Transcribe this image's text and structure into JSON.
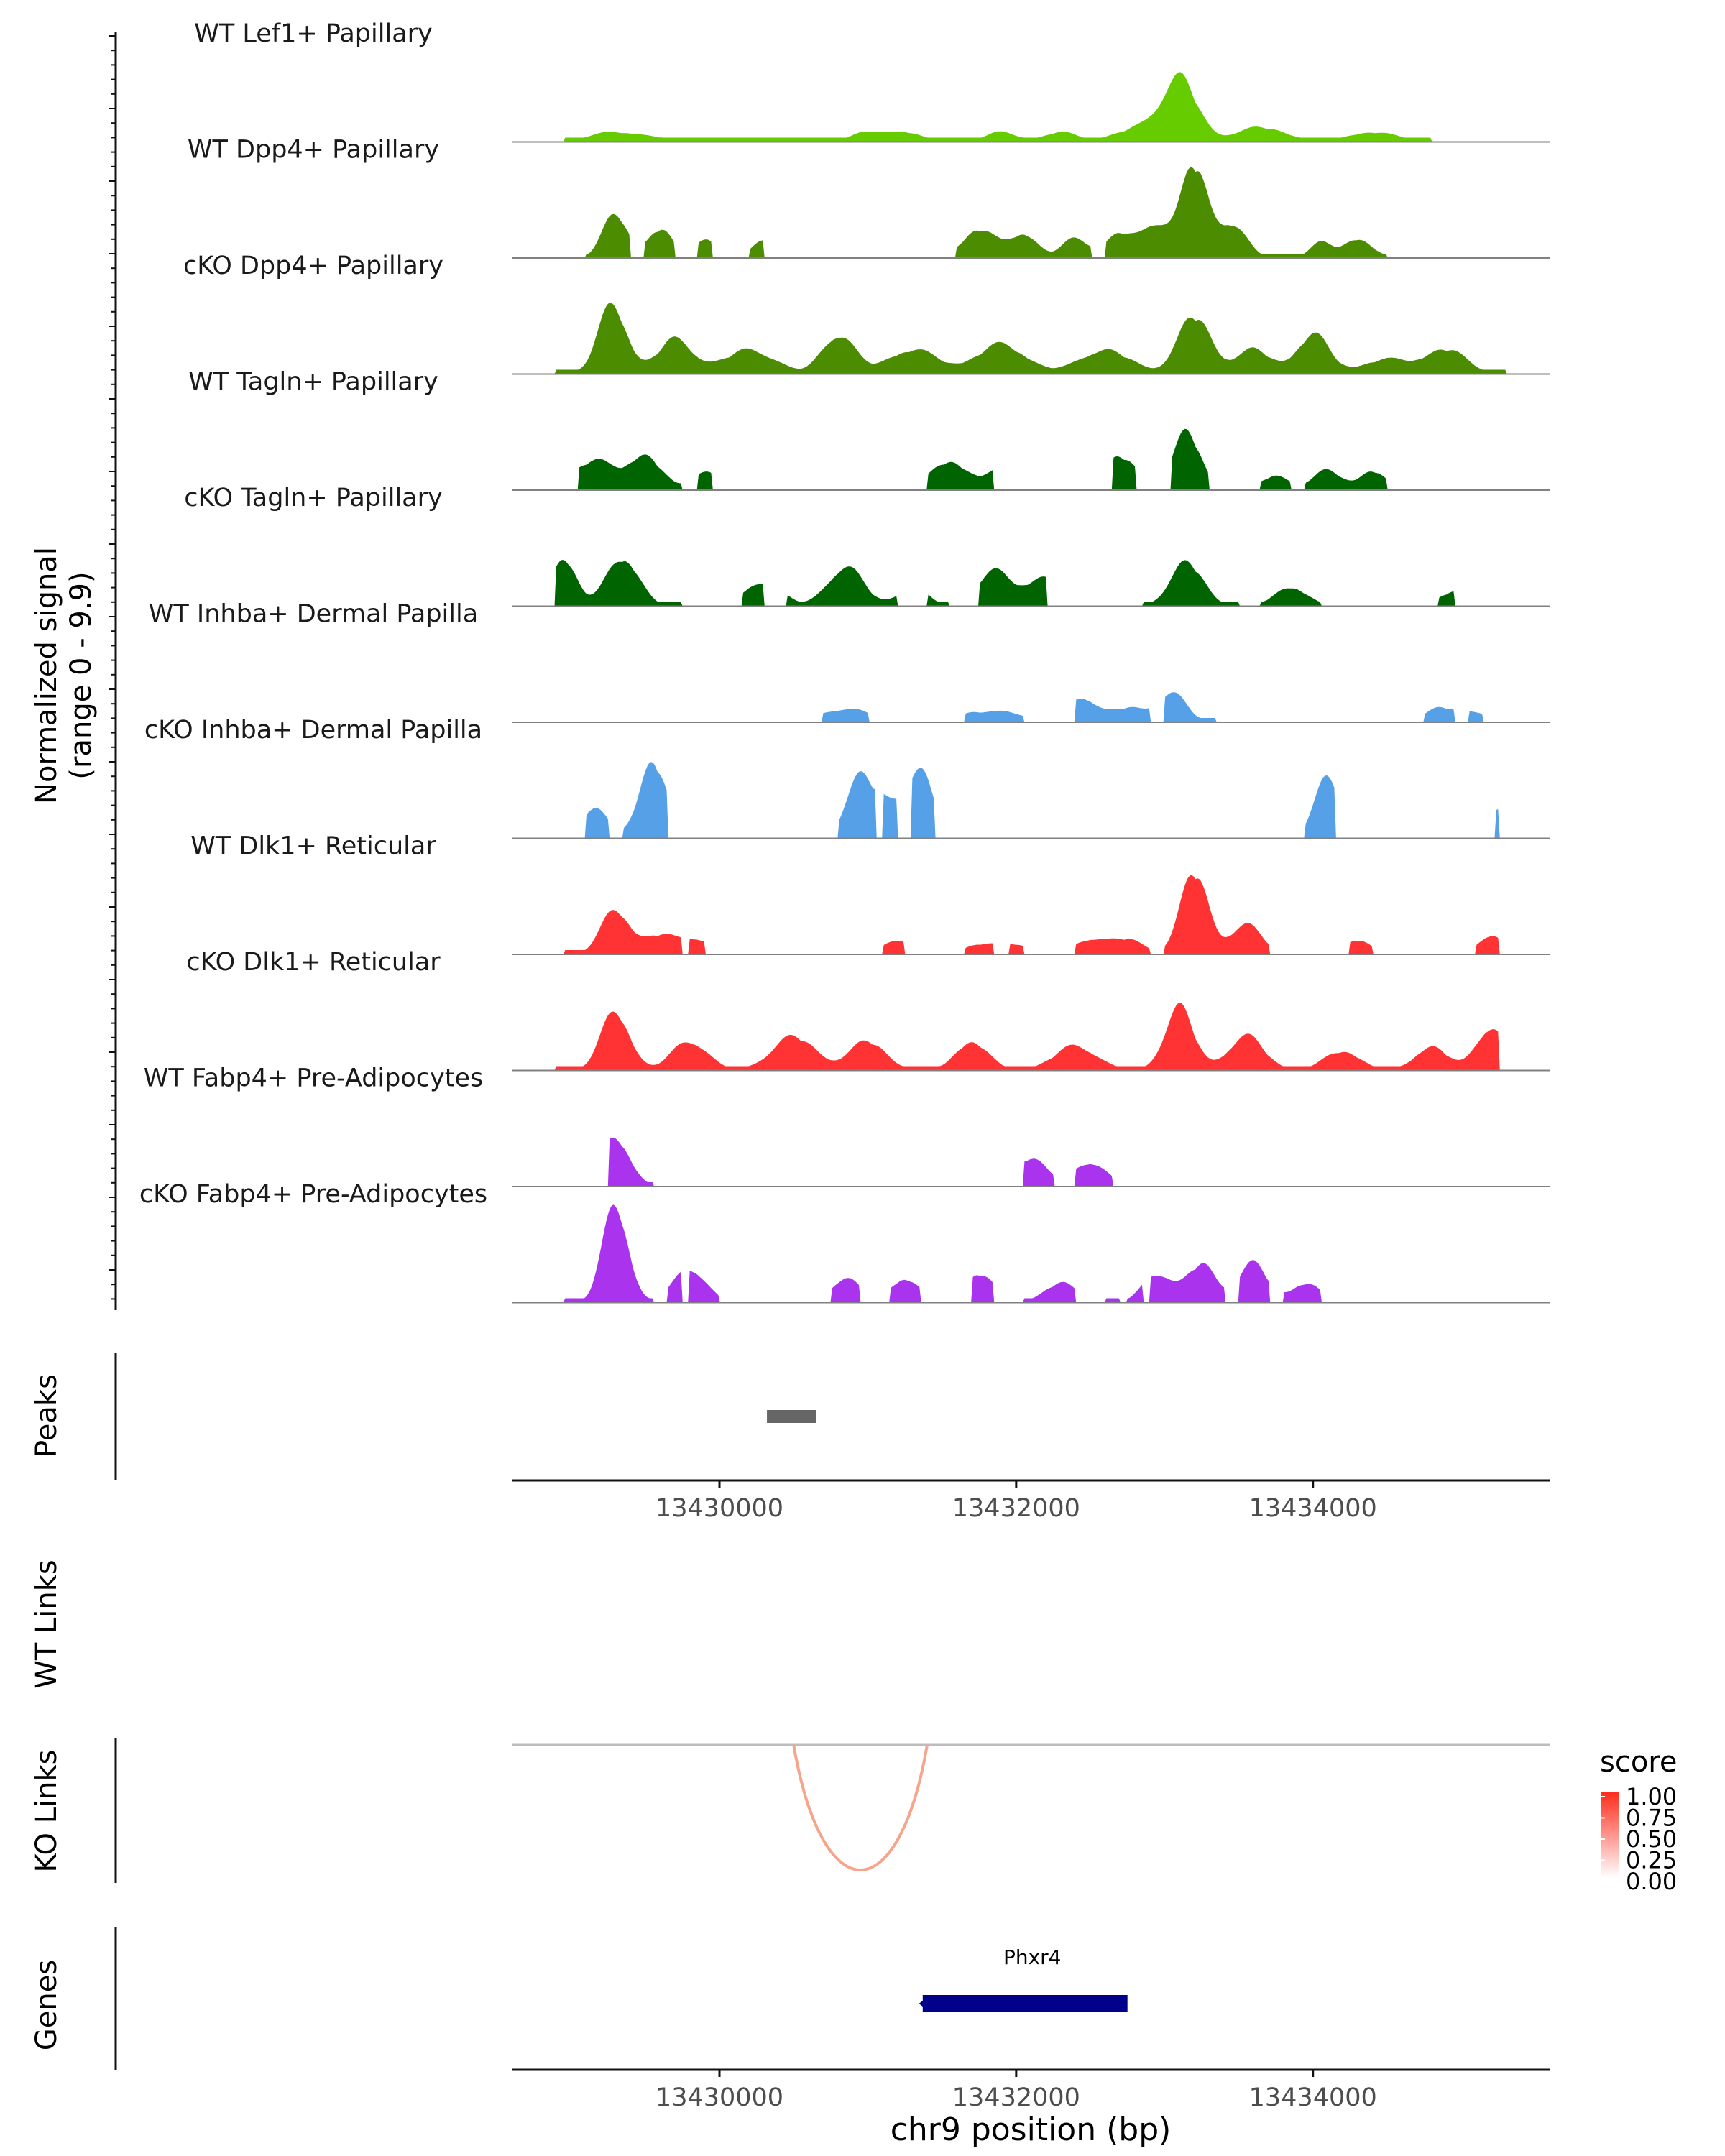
{
  "chart_data": {
    "type": "area",
    "title": "",
    "xlabel": "chr9 position (bp)",
    "ylabel": "Normalized signal",
    "ylabel_range": "(range 0 - 9.9)",
    "xlim": [
      13428600,
      13435600
    ],
    "ylim": [
      0,
      9.9
    ],
    "x_ticks": [
      13430000,
      13432000,
      13434000
    ],
    "x_tick_labels": [
      "13430000",
      "13432000",
      "13434000"
    ],
    "coverage_tracks": [
      {
        "name": "WT Lef1+ Papillary",
        "color": "#66CC00",
        "peaks": [
          [
            13429250,
            0.08,
            0.9
          ],
          [
            13429500,
            0.05,
            1.0
          ],
          [
            13431000,
            0.1,
            0.5
          ],
          [
            13431250,
            0.1,
            0.5
          ],
          [
            13431900,
            0.1,
            0.5
          ],
          [
            13432300,
            0.1,
            0.5
          ],
          [
            13432850,
            0.15,
            1.0
          ],
          [
            13433080,
            0.4,
            0.5
          ],
          [
            13433150,
            0.25,
            0.5
          ],
          [
            13433650,
            0.15,
            1.0
          ],
          [
            13434400,
            0.1,
            1.0
          ]
        ],
        "regions": [
          [
            13428950,
            13434800
          ]
        ]
      },
      {
        "name": "WT Dpp4+ Papillary",
        "color": "#4C8C00",
        "peaks": [
          [
            13429300,
            0.45,
            0.3
          ],
          [
            13429600,
            0.3,
            0.25
          ],
          [
            13429900,
            0.2,
            0.2
          ],
          [
            13430300,
            0.2,
            0.2
          ],
          [
            13431750,
            0.3,
            0.5
          ],
          [
            13432050,
            0.25,
            0.35
          ],
          [
            13432400,
            0.2,
            0.35
          ],
          [
            13432700,
            0.25,
            0.35
          ],
          [
            13432950,
            0.35,
            0.4
          ],
          [
            13433200,
            0.95,
            0.3
          ],
          [
            13433450,
            0.35,
            0.4
          ],
          [
            13434050,
            0.15,
            0.2
          ],
          [
            13434300,
            0.2,
            0.4
          ]
        ],
        "regions": [
          [
            13429100,
            13429400
          ],
          [
            13429500,
            13429700
          ],
          [
            13429850,
            13429950
          ],
          [
            13430200,
            13430300
          ],
          [
            13431600,
            13432500
          ],
          [
            13432600,
            13434500
          ]
        ]
      },
      {
        "name": "cKO Dpp4+ Papillary",
        "color": "#4C8C00",
        "peaks": [
          [
            13429280,
            0.7,
            0.4
          ],
          [
            13429700,
            0.35,
            0.6
          ],
          [
            13430200,
            0.25,
            1.0
          ],
          [
            13430800,
            0.4,
            0.5
          ],
          [
            13431300,
            0.25,
            1.0
          ],
          [
            13431900,
            0.3,
            1.0
          ],
          [
            13432600,
            0.25,
            1.0
          ],
          [
            13433200,
            0.6,
            0.5
          ],
          [
            13433600,
            0.25,
            0.6
          ],
          [
            13434000,
            0.4,
            0.5
          ],
          [
            13434500,
            0.15,
            1.0
          ],
          [
            13434900,
            0.25,
            0.7
          ]
        ],
        "regions": [
          [
            13428900,
            13435300
          ]
        ]
      },
      {
        "name": "WT Tagln+ Papillary",
        "color": "#006400",
        "peaks": [
          [
            13429150,
            0.3,
            0.8
          ],
          [
            13429500,
            0.35,
            0.5
          ],
          [
            13429900,
            0.2,
            0.3
          ],
          [
            13431550,
            0.3,
            0.6
          ],
          [
            13431900,
            0.2,
            0.5
          ],
          [
            13432700,
            0.35,
            0.5
          ],
          [
            13433150,
            0.6,
            0.35
          ],
          [
            13433750,
            0.15,
            0.4
          ],
          [
            13434100,
            0.2,
            0.4
          ],
          [
            13434400,
            0.2,
            0.3
          ]
        ],
        "regions": [
          [
            13429050,
            13429750
          ],
          [
            13429850,
            13429950
          ],
          [
            13431400,
            13431850
          ],
          [
            13432650,
            13432800
          ],
          [
            13433050,
            13433300
          ],
          [
            13433650,
            13433850
          ],
          [
            13433950,
            13434500
          ]
        ]
      },
      {
        "name": "cKO Tagln+ Papillary",
        "color": "#006400",
        "peaks": [
          [
            13428950,
            0.5,
            0.3
          ],
          [
            13429350,
            0.5,
            0.5
          ],
          [
            13430300,
            0.25,
            0.6
          ],
          [
            13430850,
            0.4,
            0.6
          ],
          [
            13431300,
            0.2,
            0.4
          ],
          [
            13431850,
            0.35,
            0.6
          ],
          [
            13432200,
            0.3,
            0.6
          ],
          [
            13433150,
            0.45,
            0.5
          ],
          [
            13433850,
            0.2,
            0.5
          ],
          [
            13434950,
            0.15,
            0.4
          ]
        ],
        "regions": [
          [
            13428900,
            13429750
          ],
          [
            13430150,
            13430300
          ],
          [
            13430450,
            13431200
          ],
          [
            13431400,
            13431550
          ],
          [
            13431750,
            13432200
          ],
          [
            13432850,
            13433500
          ],
          [
            13433650,
            13434050
          ],
          [
            13434850,
            13434950
          ]
        ]
      },
      {
        "name": "WT Inhba+ Dermal Papilla",
        "color": "#56A0E8",
        "peaks": [
          [
            13430750,
            0.1,
            0.5
          ],
          [
            13430950,
            0.1,
            0.5
          ],
          [
            13431700,
            0.1,
            0.5
          ],
          [
            13431950,
            0.1,
            0.5
          ],
          [
            13432450,
            0.25,
            0.4
          ],
          [
            13432750,
            0.15,
            0.5
          ],
          [
            13433050,
            0.3,
            0.4
          ],
          [
            13434850,
            0.15,
            0.4
          ],
          [
            13435100,
            0.1,
            0.5
          ]
        ],
        "regions": [
          [
            13430700,
            13431000
          ],
          [
            13431650,
            13432050
          ],
          [
            13432400,
            13432900
          ],
          [
            13433000,
            13433350
          ],
          [
            13434750,
            13434950
          ],
          [
            13435050,
            13435150
          ]
        ]
      },
      {
        "name": "cKO Inhba+ Dermal Papilla",
        "color": "#56A0E8",
        "peaks": [
          [
            13429150,
            0.3,
            0.4
          ],
          [
            13429550,
            0.8,
            0.35
          ],
          [
            13430950,
            0.6,
            0.4
          ],
          [
            13431150,
            0.3,
            0.4
          ],
          [
            13431350,
            0.65,
            0.35
          ],
          [
            13434100,
            0.6,
            0.35
          ],
          [
            13435250,
            0.3,
            0.2
          ]
        ],
        "regions": [
          [
            13429100,
            13429250
          ],
          [
            13429350,
            13429650
          ],
          [
            13430800,
            13431050
          ],
          [
            13431100,
            13431200
          ],
          [
            13431300,
            13431450
          ],
          [
            13433950,
            13434150
          ],
          [
            13435230,
            13435250
          ]
        ]
      },
      {
        "name": "WT Dlk1+ Reticular",
        "color": "#FF3333",
        "peaks": [
          [
            13429300,
            0.45,
            0.4
          ],
          [
            13429600,
            0.2,
            0.5
          ],
          [
            13429850,
            0.15,
            0.4
          ],
          [
            13431200,
            0.15,
            0.4
          ],
          [
            13431750,
            0.1,
            0.5
          ],
          [
            13432000,
            0.1,
            0.5
          ],
          [
            13432500,
            0.15,
            0.5
          ],
          [
            13432750,
            0.15,
            0.5
          ],
          [
            13433200,
            0.85,
            0.35
          ],
          [
            13433550,
            0.3,
            0.5
          ],
          [
            13434300,
            0.15,
            0.4
          ],
          [
            13435200,
            0.2,
            0.3
          ]
        ],
        "regions": [
          [
            13428950,
            13429750
          ],
          [
            13429800,
            13429900
          ],
          [
            13431100,
            13431250
          ],
          [
            13431650,
            13431850
          ],
          [
            13431950,
            13432050
          ],
          [
            13432400,
            13432900
          ],
          [
            13433000,
            13433700
          ],
          [
            13434250,
            13434400
          ],
          [
            13435100,
            13435250
          ]
        ]
      },
      {
        "name": "cKO Dlk1+ Reticular",
        "color": "#FF3333",
        "peaks": [
          [
            13429300,
            0.6,
            0.4
          ],
          [
            13429800,
            0.3,
            0.6
          ],
          [
            13430500,
            0.35,
            0.8
          ],
          [
            13431000,
            0.3,
            0.6
          ],
          [
            13431700,
            0.3,
            0.5
          ],
          [
            13432400,
            0.25,
            0.8
          ],
          [
            13433100,
            0.65,
            0.4
          ],
          [
            13433550,
            0.35,
            0.6
          ],
          [
            13434200,
            0.2,
            0.6
          ],
          [
            13434800,
            0.25,
            0.5
          ],
          [
            13435200,
            0.45,
            0.4
          ]
        ],
        "regions": [
          [
            13428900,
            13435250
          ]
        ]
      },
      {
        "name": "WT Fabp4+ Pre-Adipocytes",
        "color": "#AA33EE",
        "peaks": [
          [
            13429300,
            0.5,
            0.4
          ],
          [
            13432100,
            0.3,
            0.5
          ],
          [
            13432500,
            0.25,
            0.5
          ]
        ],
        "regions": [
          [
            13429250,
            13429550
          ],
          [
            13432050,
            13432250
          ],
          [
            13432400,
            13432650
          ]
        ]
      },
      {
        "name": "cKO Fabp4+ Pre-Adipocytes",
        "color": "#AA33EE",
        "peaks": [
          [
            13429300,
            1.0,
            0.3
          ],
          [
            13429800,
            0.35,
            0.5
          ],
          [
            13430850,
            0.25,
            0.4
          ],
          [
            13431250,
            0.25,
            0.4
          ],
          [
            13431750,
            0.3,
            0.4
          ],
          [
            13432300,
            0.2,
            0.5
          ],
          [
            13432950,
            0.3,
            0.4
          ],
          [
            13433250,
            0.4,
            0.4
          ],
          [
            13433600,
            0.4,
            0.4
          ],
          [
            13433950,
            0.2,
            0.4
          ]
        ],
        "regions": [
          [
            13428950,
            13429550
          ],
          [
            13429650,
            13429750
          ],
          [
            13429800,
            13430000
          ],
          [
            13430750,
            13430950
          ],
          [
            13431150,
            13431350
          ],
          [
            13431700,
            13431850
          ],
          [
            13432050,
            13432400
          ],
          [
            13432600,
            13432700
          ],
          [
            13432750,
            13432850
          ],
          [
            13432900,
            13433400
          ],
          [
            13433500,
            13433700
          ],
          [
            13433800,
            13434050
          ]
        ]
      }
    ],
    "peaks_track": {
      "label": "Peaks",
      "color": "#666666",
      "regions": [
        [
          13430320,
          13430650
        ]
      ]
    },
    "wt_links": {
      "label": "WT Links",
      "links": []
    },
    "ko_links": {
      "label": "KO Links",
      "links": [
        {
          "start": 13430500,
          "end": 13431400,
          "score": 0.35
        }
      ]
    },
    "legend": {
      "title": "score",
      "position": "right",
      "ticks": [
        "1.00",
        "0.75",
        "0.50",
        "0.25",
        "0.00"
      ],
      "color_low": "#FFFFFF",
      "color_high": "#FF2A1A"
    },
    "genes": {
      "label": "Genes",
      "color": "#00008B",
      "items": [
        {
          "name": "Phxr4",
          "start": 13431370,
          "end": 13432750,
          "strand": "-"
        }
      ]
    }
  }
}
